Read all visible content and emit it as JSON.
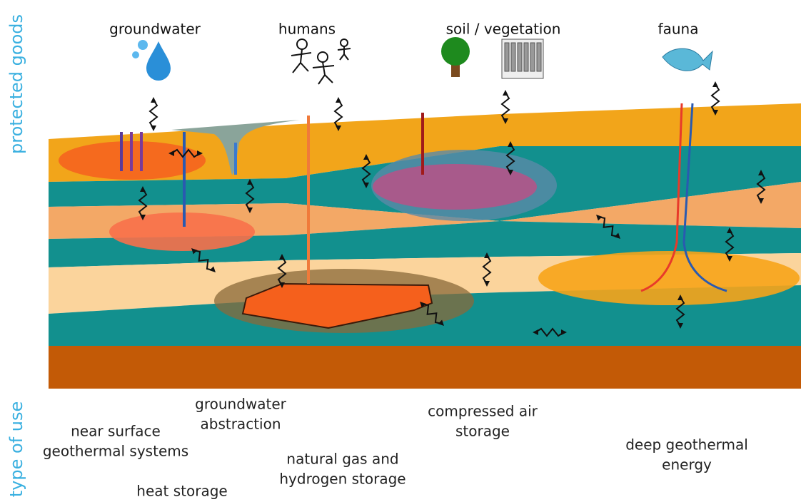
{
  "axis_labels": {
    "top": "protected goods",
    "bottom": "type of use"
  },
  "protected_goods": [
    "groundwater",
    "humans",
    "soil / vegetation",
    "fauna"
  ],
  "uses": [
    {
      "lines": [
        "near surface",
        "geothermal systems"
      ]
    },
    {
      "lines": [
        "groundwater",
        "abstraction"
      ]
    },
    {
      "lines": [
        "heat storage"
      ]
    },
    {
      "lines": [
        "natural gas and",
        "hydrogen  storage"
      ]
    },
    {
      "lines": [
        "compressed air",
        "storage"
      ]
    },
    {
      "lines": [
        "deep geothermal",
        "energy"
      ]
    }
  ]
}
